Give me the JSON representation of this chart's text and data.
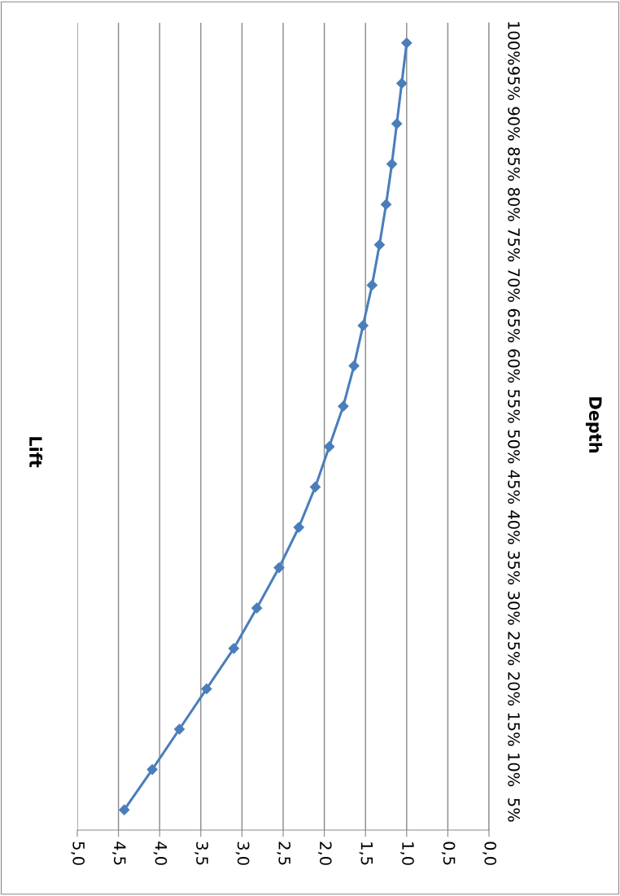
{
  "chart_data": {
    "type": "line",
    "orientation": "horizontal",
    "ylabel": "Lift",
    "annotations": [
      "Depth"
    ],
    "categories": [
      "100%",
      "95%",
      "90%",
      "85%",
      "80%",
      "75%",
      "70%",
      "65%",
      "60%",
      "55%",
      "50%",
      "45%",
      "40%",
      "35%",
      "30%",
      "25%",
      "20%",
      "15%",
      "10%",
      "5%"
    ],
    "series": [
      {
        "color": "#4a7ebb",
        "values": [
          1.0,
          1.06,
          1.12,
          1.18,
          1.25,
          1.33,
          1.42,
          1.53,
          1.64,
          1.77,
          1.94,
          2.11,
          2.31,
          2.55,
          2.82,
          3.1,
          3.43,
          3.76,
          4.09,
          4.43
        ]
      }
    ],
    "xlim": [
      5,
      0
    ],
    "xticks": [
      {
        "value": 5,
        "label": "5,0"
      },
      {
        "value": 4.5,
        "label": "4,5"
      },
      {
        "value": 4,
        "label": "4,0"
      },
      {
        "value": 3.5,
        "label": "3,5"
      },
      {
        "value": 3,
        "label": "3,0"
      },
      {
        "value": 2.5,
        "label": "2,5"
      },
      {
        "value": 2,
        "label": "2,0"
      },
      {
        "value": 1.5,
        "label": "1,5"
      },
      {
        "value": 1,
        "label": "1,0"
      },
      {
        "value": 0.5,
        "label": "0,5"
      },
      {
        "value": 0,
        "label": "0,0"
      }
    ],
    "grid": "x",
    "marker": "diamond",
    "line_style": "solid"
  }
}
